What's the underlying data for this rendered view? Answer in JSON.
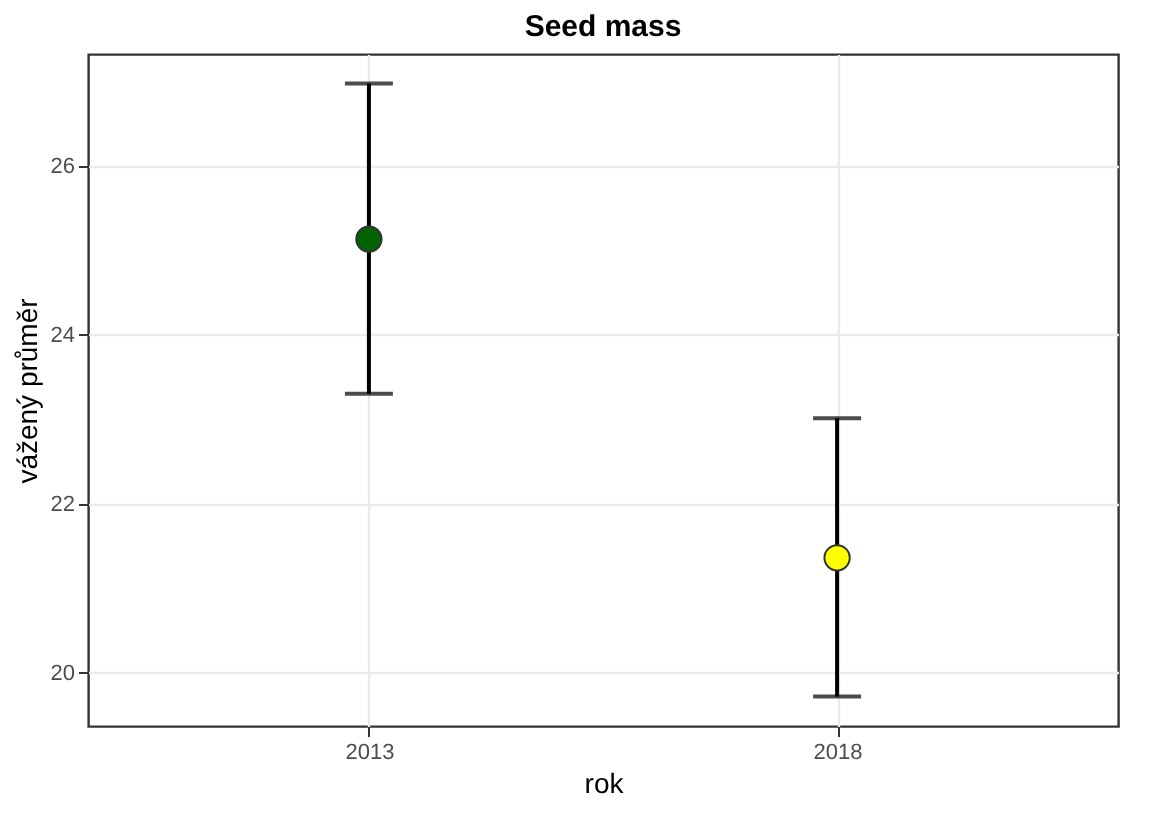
{
  "chart_data": {
    "type": "scatter",
    "title": "Seed mass",
    "xlabel": "rok",
    "ylabel": "vážený průměr",
    "categories": [
      "2013",
      "2018"
    ],
    "values": [
      25.13,
      21.36
    ],
    "colors": [
      "#006400",
      "#ffff00"
    ],
    "errors": [
      [
        23.3,
        26.97
      ],
      [
        19.72,
        23.01
      ]
    ],
    "ylim": [
      19.37,
      27.32
    ],
    "yticks": [
      20,
      22,
      24,
      26
    ],
    "grid": true,
    "marker": "circle"
  }
}
